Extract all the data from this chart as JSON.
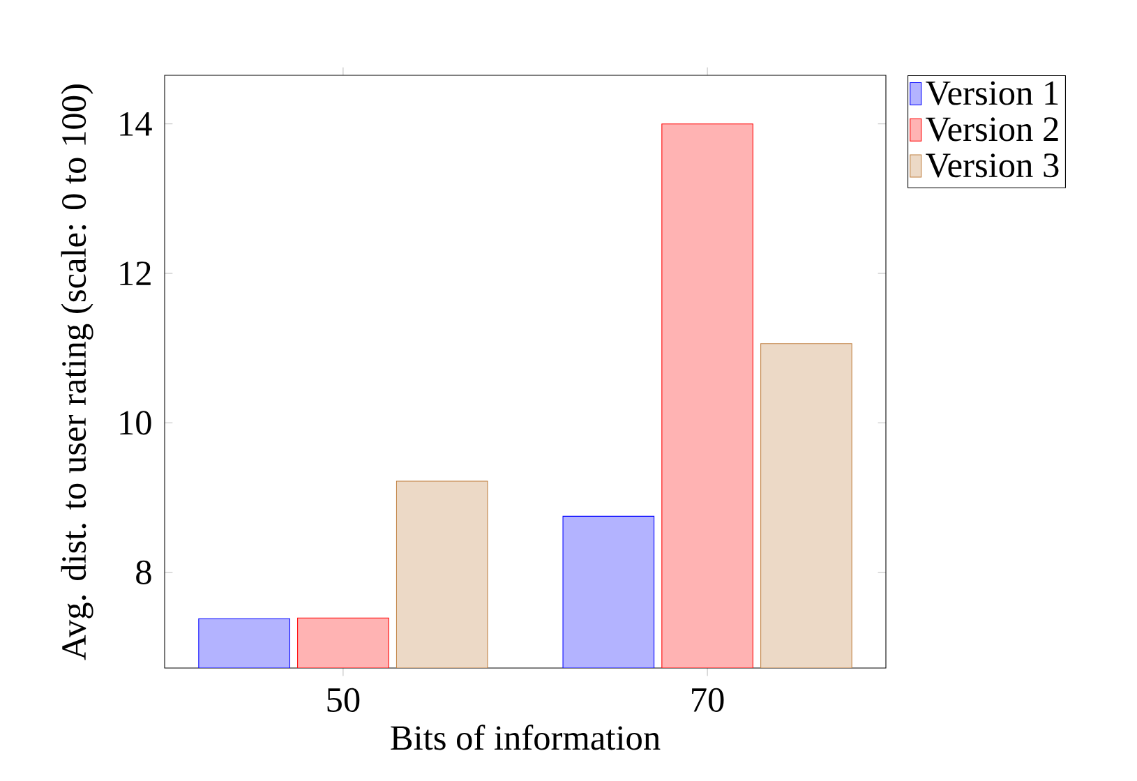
{
  "chart_data": {
    "type": "bar",
    "xlabel": "Bits of information",
    "ylabel": "Avg. dist. to user rating (scale: 0 to 100)",
    "x": [
      50,
      70
    ],
    "xlim": [
      40.2,
      79.8
    ],
    "xticks": [
      50,
      70
    ],
    "ylim": [
      6.72,
      14.65
    ],
    "yticks": [
      8,
      10,
      12,
      14
    ],
    "legend": "top right",
    "series": [
      {
        "name": "Version 1",
        "color": "#b3b3ff",
        "values": [
          7.38,
          8.75
        ]
      },
      {
        "name": "Version 2",
        "color": "#ffb3b3",
        "values": [
          7.39,
          14.0
        ]
      },
      {
        "name": "Version 3",
        "color": "#ecd9c6",
        "values": [
          9.22,
          11.06
        ]
      }
    ]
  }
}
